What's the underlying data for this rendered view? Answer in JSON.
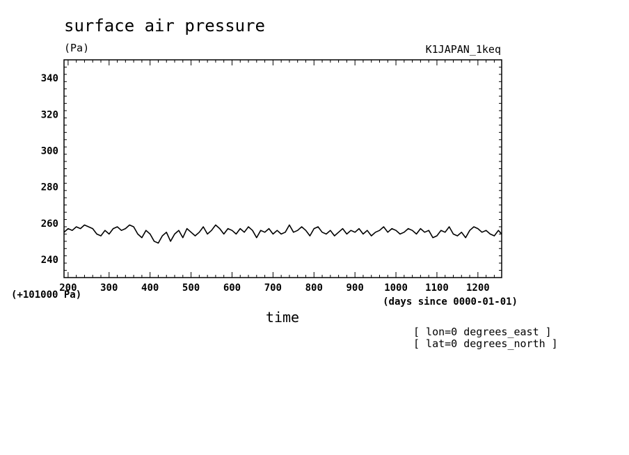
{
  "chart_data": {
    "type": "line",
    "title": "surface air pressure",
    "units": "(Pa)",
    "run_label": "K1JAPAN_1keq",
    "xlabel": "time",
    "xunits": "(days since 0000-01-01)",
    "y_offset_label": "(+101000 Pa)",
    "xlim": [
      190,
      1258
    ],
    "ylim": [
      230,
      350
    ],
    "x_ticks": [
      "200",
      "300",
      "400",
      "500",
      "600",
      "700",
      "800",
      "900",
      "1000",
      "1100",
      "1200"
    ],
    "y_ticks": [
      "240",
      "260",
      "280",
      "300",
      "320",
      "340"
    ],
    "grid": false,
    "annotations": [
      "[ lon=0 degrees_east ]",
      "[ lat=0 degrees_north ]"
    ],
    "series": [
      {
        "x": [
          190,
          200,
          210,
          220,
          230,
          240,
          250,
          260,
          270,
          280,
          290,
          300,
          310,
          320,
          330,
          340,
          350,
          360,
          370,
          380,
          390,
          400,
          410,
          420,
          430,
          440,
          450,
          460,
          470,
          480,
          490,
          500,
          510,
          520,
          530,
          540,
          550,
          560,
          570,
          580,
          590,
          600,
          610,
          620,
          630,
          640,
          650,
          660,
          670,
          680,
          690,
          700,
          710,
          720,
          730,
          740,
          750,
          760,
          770,
          780,
          790,
          800,
          810,
          820,
          830,
          840,
          850,
          860,
          870,
          880,
          890,
          900,
          910,
          920,
          930,
          940,
          950,
          960,
          970,
          980,
          990,
          1000,
          1010,
          1020,
          1030,
          1040,
          1050,
          1060,
          1070,
          1080,
          1090,
          1100,
          1110,
          1120,
          1130,
          1140,
          1150,
          1160,
          1170,
          1180,
          1190,
          1200,
          1210,
          1220,
          1230,
          1240,
          1250,
          1258
        ],
        "y": [
          255,
          257,
          256,
          258,
          257,
          259,
          258,
          257,
          254,
          253,
          256,
          254,
          257,
          258,
          256,
          257,
          259,
          258,
          254,
          252,
          256,
          254,
          250,
          249,
          253,
          255,
          250,
          254,
          256,
          252,
          257,
          255,
          253,
          255,
          258,
          254,
          256,
          259,
          257,
          254,
          257,
          256,
          254,
          257,
          255,
          258,
          256,
          252,
          256,
          255,
          257,
          254,
          256,
          254,
          255,
          259,
          255,
          256,
          258,
          256,
          253,
          257,
          258,
          255,
          254,
          256,
          253,
          255,
          257,
          254,
          256,
          255,
          257,
          254,
          256,
          253,
          255,
          256,
          258,
          255,
          257,
          256,
          254,
          255,
          257,
          256,
          254,
          257,
          255,
          256,
          252,
          253,
          256,
          255,
          258,
          254,
          253,
          255,
          252,
          256,
          258,
          257,
          255,
          256,
          254,
          253,
          256,
          254
        ]
      }
    ]
  }
}
